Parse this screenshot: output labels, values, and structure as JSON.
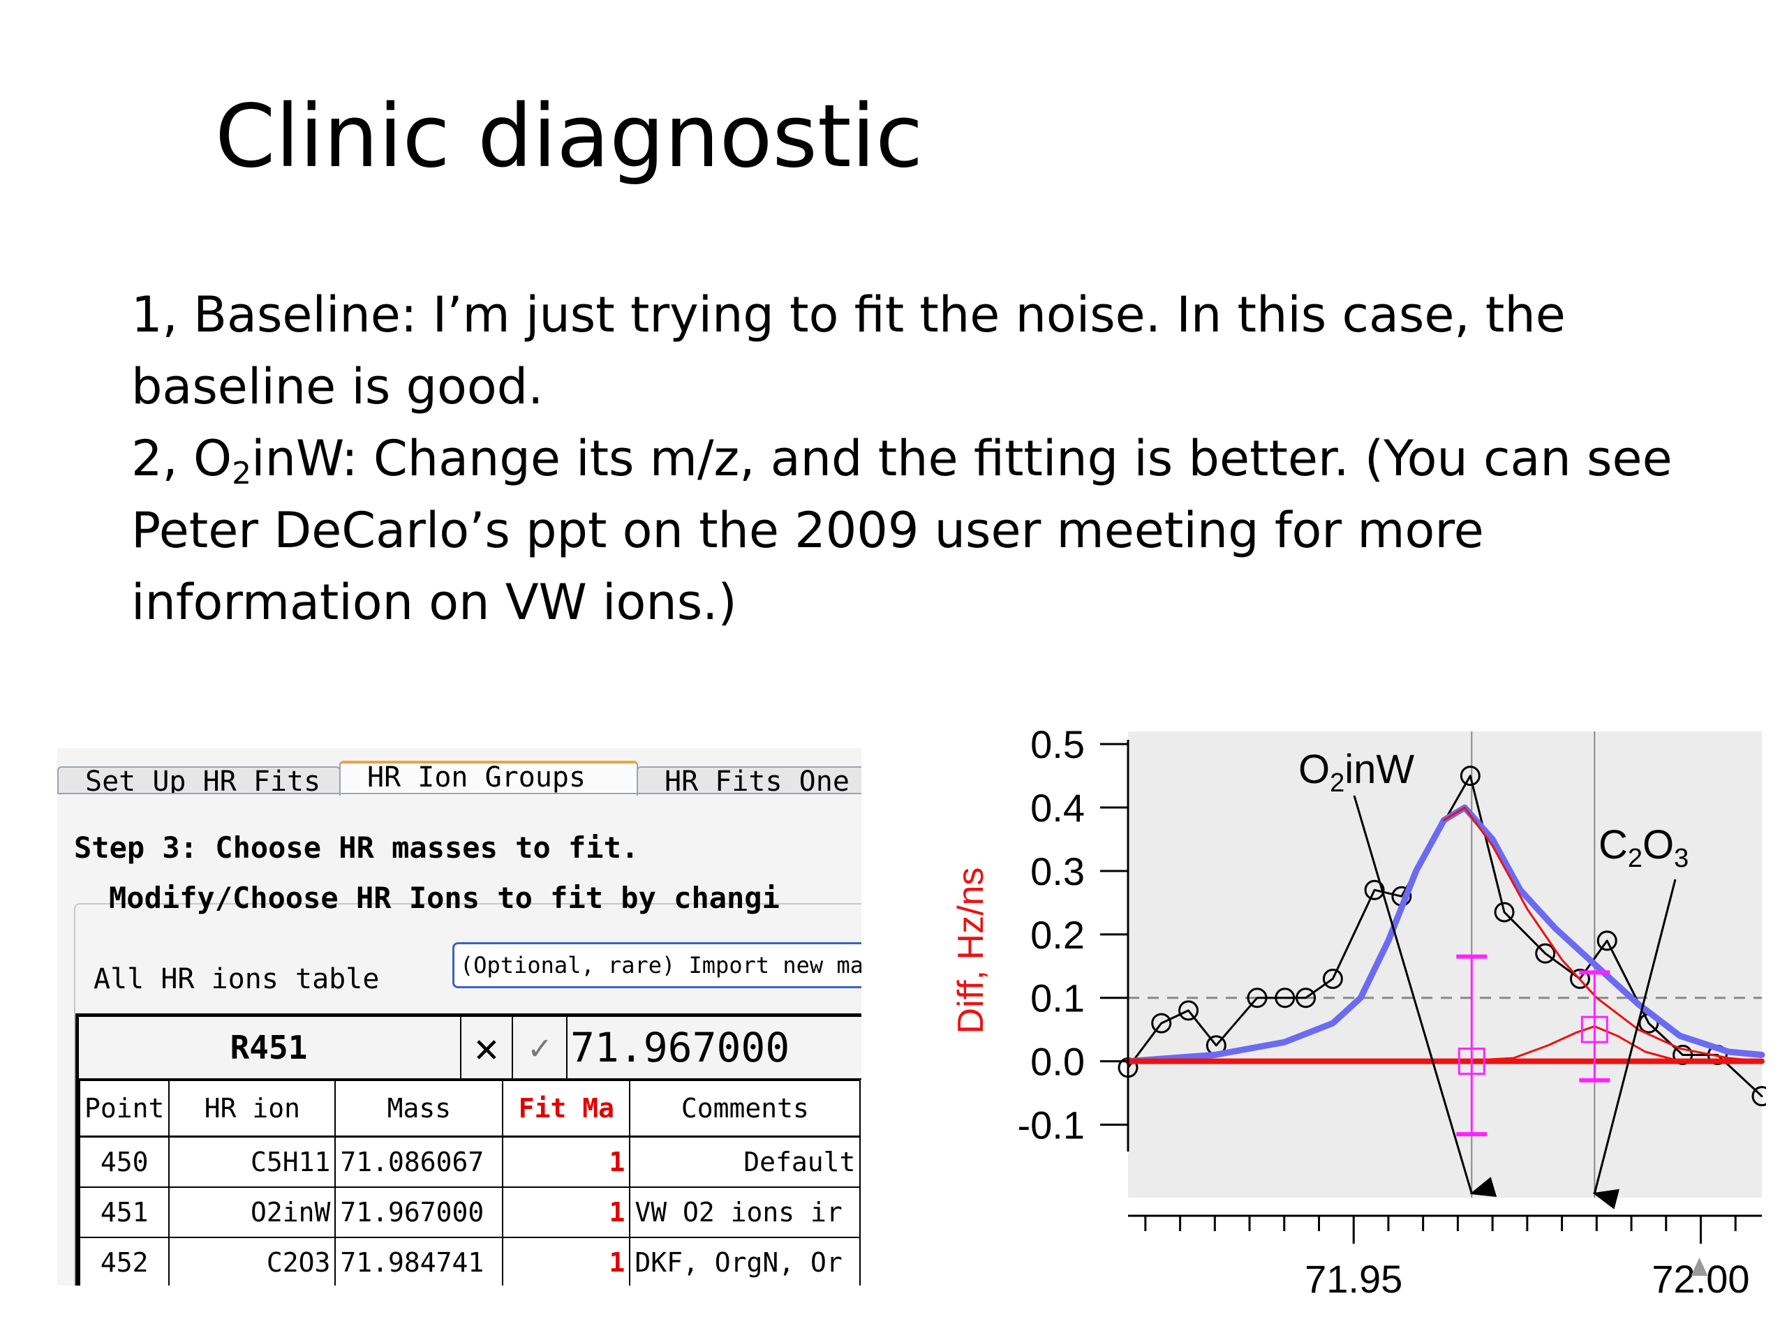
{
  "slide": {
    "title": "Clinic diagnostic",
    "line1": "1, Baseline: I’m just trying to fit the noise. In this case, the baseline is good.",
    "line2_prefix": "2, O",
    "line2_sub": "2",
    "line2_rest": "inW: Change its m/z,  and the fitting is better. (You can see Peter DeCarlo’s ppt on the 2009 user meeting for more information on VW ions.)"
  },
  "panel": {
    "tabs": [
      {
        "label": "Set Up HR Fits",
        "active": false
      },
      {
        "label": "HR Ion Groups",
        "active": true
      },
      {
        "label": "HR Fits One",
        "active": false
      }
    ],
    "step_text": "Step 3: Choose HR masses to fit.",
    "modify_text": "Modify/Choose HR Ions to fit by changi",
    "all_ions_label": "All HR ions table",
    "import_button": "(Optional, rare) Import new mass",
    "entry": {
      "label": "R451",
      "cancel_symbol": "✕",
      "accept_symbol": "✓",
      "value": "71.967000"
    },
    "columns": [
      "Point",
      "HR ion",
      "Mass",
      "Fit Ma",
      "Comments"
    ],
    "rows": [
      {
        "point": "450",
        "ion": "C5H11",
        "mass": "71.086067",
        "fit": "1",
        "comment": "Default"
      },
      {
        "point": "451",
        "ion": "O2inW",
        "mass": "71.967000",
        "fit": "1",
        "comment": "VW O2 ions ir"
      },
      {
        "point": "452",
        "ion": "C2O3",
        "mass": "71.984741",
        "fit": "1",
        "comment": "DKF, OrgN, Or"
      }
    ]
  },
  "chart_data": {
    "type": "line",
    "ylabel": "Diff, Hz/ns",
    "yticks": [
      "0.5",
      "0.4",
      "0.3",
      "0.2",
      "0.1",
      "0.0",
      "-0.1"
    ],
    "xticks": [
      "71.95",
      "72.00"
    ],
    "ylim": [
      -0.215,
      0.52
    ],
    "xlim": [
      71.9175,
      72.0088
    ],
    "reference_line_y": 0.1,
    "markers": [
      {
        "name": "O2inW",
        "name_prefix": "O",
        "name_sub": "2",
        "name_rest": "inW",
        "x": 71.967
      },
      {
        "name": "C2O3",
        "name_prefix": "C",
        "name_sub": "2",
        "name_mid": "O",
        "name_sub2": "3",
        "x": 71.9847
      }
    ],
    "series": [
      {
        "color": "#000000",
        "style": "points-line",
        "x": [
          71.9175,
          71.9223,
          71.9262,
          71.9302,
          71.9361,
          71.9401,
          71.9431,
          71.947,
          71.953,
          71.9569,
          71.9668,
          71.9717,
          71.9776,
          71.9826,
          71.9865,
          71.9925,
          71.9974,
          72.0024,
          72.0088
        ],
        "y": [
          -0.01,
          0.06,
          0.08,
          0.025,
          0.1,
          0.1,
          0.1,
          0.13,
          0.27,
          0.26,
          0.45,
          0.235,
          0.17,
          0.13,
          0.19,
          0.06,
          0.01,
          0.01,
          -0.055
        ]
      },
      {
        "color": "#6b6bf2",
        "style": "thick-line",
        "x": [
          71.9175,
          71.93,
          71.94,
          71.947,
          71.951,
          71.955,
          71.959,
          71.963,
          71.966,
          71.97,
          71.974,
          71.979,
          71.985,
          71.991,
          71.997,
          72.004,
          72.0088
        ],
        "y": [
          0.0,
          0.01,
          0.03,
          0.06,
          0.1,
          0.19,
          0.3,
          0.38,
          0.4,
          0.35,
          0.27,
          0.21,
          0.15,
          0.09,
          0.04,
          0.015,
          0.01
        ]
      },
      {
        "color": "#ee1111",
        "style": "thin-line",
        "x": [
          71.963,
          71.966,
          71.97,
          71.975,
          71.98,
          71.985,
          71.991,
          71.997,
          72.004,
          72.0088
        ],
        "y": [
          0.38,
          0.4,
          0.34,
          0.24,
          0.16,
          0.1,
          0.05,
          0.02,
          0.005,
          0.0
        ]
      },
      {
        "color": "#ee1111",
        "style": "thin-line",
        "x": [
          71.965,
          71.973,
          71.978,
          71.982,
          71.9847,
          71.988,
          71.992,
          71.997,
          72.0088
        ],
        "y": [
          0.0,
          0.005,
          0.025,
          0.045,
          0.055,
          0.04,
          0.015,
          0.0,
          0.0
        ]
      },
      {
        "color": "#ee1111",
        "style": "baseline",
        "x": [
          71.9175,
          72.0088
        ],
        "y": [
          0.0,
          0.0
        ]
      }
    ],
    "error_bars": [
      {
        "x": 71.967,
        "y": 0.0,
        "low": -0.115,
        "high": 0.165,
        "color": "#ff22ff"
      },
      {
        "x": 71.9847,
        "y": 0.05,
        "low": -0.03,
        "high": 0.14,
        "color": "#ff22ff"
      }
    ]
  }
}
